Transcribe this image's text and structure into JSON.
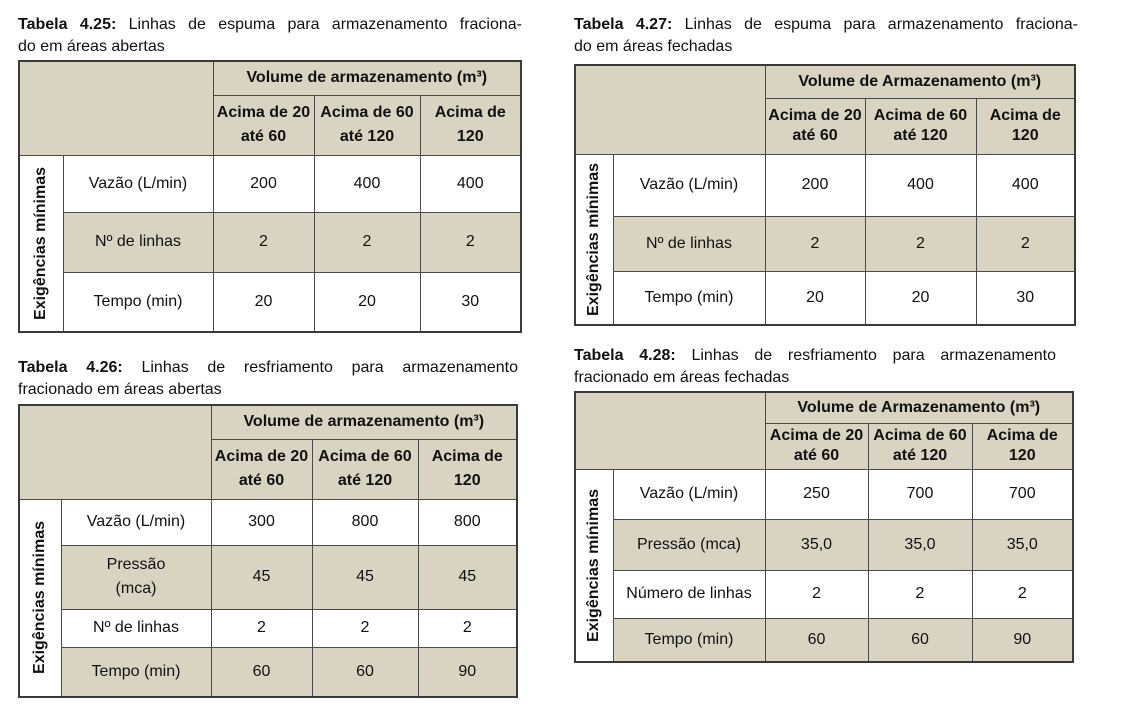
{
  "tables": [
    {
      "caption_label": "Tabela 4.25:",
      "caption_line1": "Linhas de espuma para armazenamento fraciona-",
      "caption_line2": "do em áreas abertas",
      "header": "Volume de armazenamento (m³)",
      "cols": [
        "Acima de 20 até 60",
        "Acima de 60 até 120",
        "Acima de 120"
      ],
      "side_label": "Exigências mínimas",
      "rows": [
        {
          "label": "Vazão  (L/min)",
          "values": [
            "200",
            "400",
            "400"
          ]
        },
        {
          "label": "Nº de linhas",
          "values": [
            "2",
            "2",
            "2"
          ]
        },
        {
          "label": "Tempo  (min)",
          "values": [
            "20",
            "20",
            "30"
          ]
        }
      ]
    },
    {
      "caption_label": "Tabela 4.26:",
      "caption_line1": "Linhas de resfriamento para armazenamento",
      "caption_line2": "fracionado em áreas abertas",
      "header": "Volume de armazenamento  (m³)",
      "cols": [
        "Acima de 20 até 60",
        "Acima de 60 até 120",
        "Acima de 120"
      ],
      "side_label": "Exigências mínimas",
      "rows": [
        {
          "label": "Vazão  (L/min)",
          "values": [
            "300",
            "800",
            "800"
          ]
        },
        {
          "label": "Pressão (mca)",
          "values": [
            "45",
            "45",
            "45"
          ]
        },
        {
          "label": "Nº de linhas",
          "values": [
            "2",
            "2",
            "2"
          ]
        },
        {
          "label": "Tempo (min)",
          "values": [
            "60",
            "60",
            "90"
          ]
        }
      ]
    },
    {
      "caption_label": "Tabela 4.27:",
      "caption_line1": "Linhas de espuma para armazenamento fraciona-",
      "caption_line2": "do em áreas fechadas",
      "header": "Volume de Armazenamento (m³)",
      "cols": [
        "Acima de 20 até 60",
        "Acima de 60 até 120",
        "Acima de 120"
      ],
      "side_label": "Exigências mínimas",
      "rows": [
        {
          "label": "Vazão  (L/min)",
          "values": [
            "200",
            "400",
            "400"
          ]
        },
        {
          "label": "Nº de linhas",
          "values": [
            "2",
            "2",
            "2"
          ]
        },
        {
          "label": "Tempo  (min)",
          "values": [
            "20",
            "20",
            "30"
          ]
        }
      ]
    },
    {
      "caption_label": "Tabela 4.28:",
      "caption_line1": "Linhas de resfriamento para armazenamento",
      "caption_line2": "fracionado em áreas fechadas",
      "header": "Volume de Armazenamento  (m³)",
      "cols": [
        "Acima de 20 até 60",
        "Acima de 60 até 120",
        "Acima de 120"
      ],
      "side_label": "Exigências mínimas",
      "rows": [
        {
          "label": "Vazão (L/min)",
          "values": [
            "250",
            "700",
            "700"
          ]
        },
        {
          "label": "Pressão (mca)",
          "values": [
            "35,0",
            "35,0",
            "35,0"
          ]
        },
        {
          "label": "Número de linhas",
          "values": [
            "2",
            "2",
            "2"
          ]
        },
        {
          "label": "Tempo (min)",
          "values": [
            "60",
            "60",
            "90"
          ]
        }
      ]
    }
  ]
}
